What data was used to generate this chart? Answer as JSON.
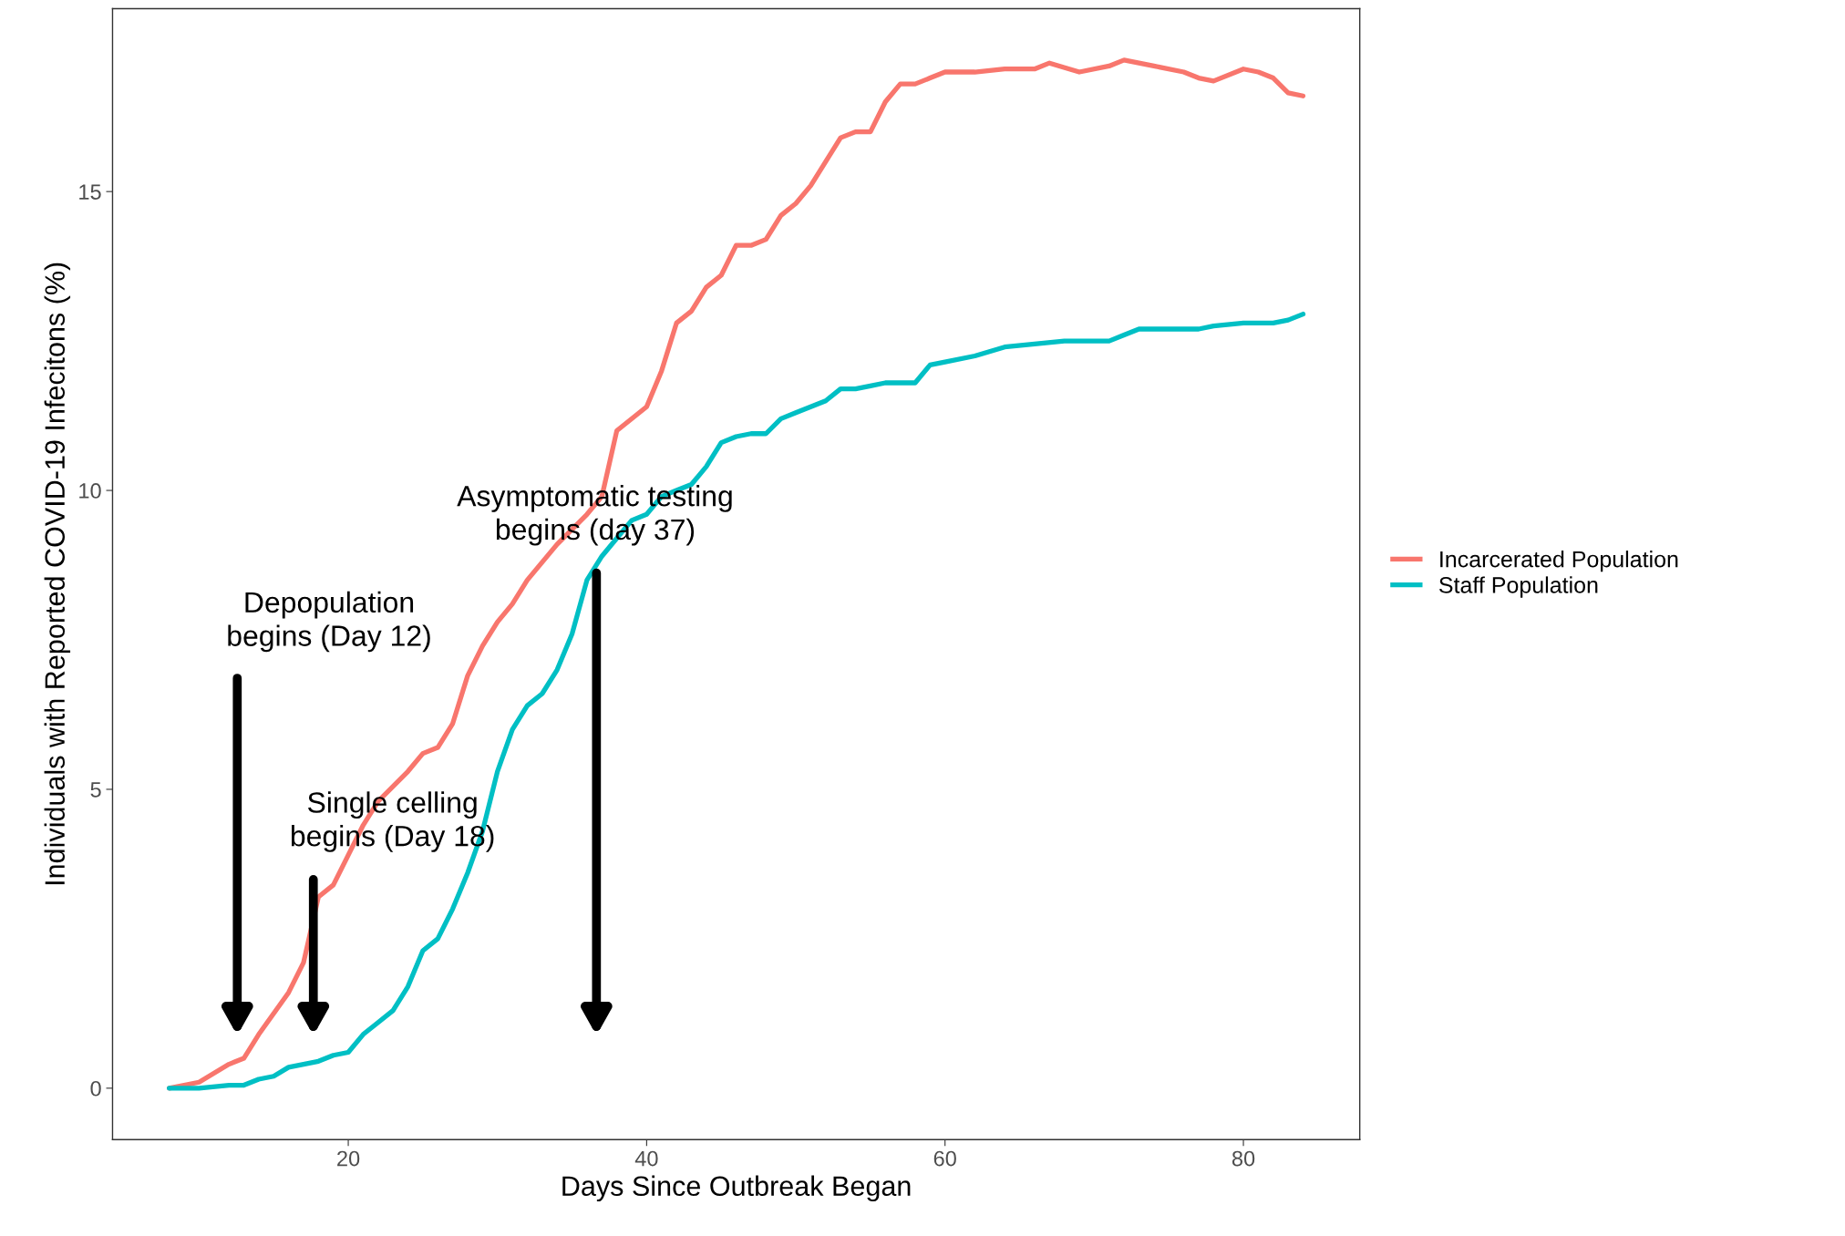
{
  "chart_data": {
    "type": "line",
    "xlabel": "Days Since Outbreak Began",
    "ylabel": "Individuals with Reported COVID-19 Infecitons (%)",
    "xlim": [
      4.2,
      87.8
    ],
    "xticks": [
      20,
      40,
      60,
      80
    ],
    "ylim": [
      -0.86,
      18.06
    ],
    "yticks": [
      0,
      5,
      10,
      15
    ],
    "grid": false,
    "legend": "right",
    "line_style": "solid",
    "marker": "none",
    "series": [
      {
        "name": "Incarcerated Population",
        "color": "#f8766d",
        "x": [
          8,
          10,
          12,
          13,
          14,
          16,
          17,
          18,
          19,
          20,
          21,
          22,
          24,
          25,
          26,
          27,
          28,
          29,
          30,
          31,
          32,
          34,
          36,
          37,
          38,
          40,
          41,
          42,
          43,
          44,
          45,
          46,
          47,
          48,
          49,
          50,
          51,
          52,
          53,
          54,
          55,
          56,
          57,
          58,
          59,
          60,
          62,
          64,
          66,
          67,
          69,
          71,
          72,
          74,
          76,
          77,
          78,
          80,
          81,
          82,
          83,
          84
        ],
        "values": [
          0.0,
          0.1,
          0.4,
          0.5,
          0.9,
          1.6,
          2.1,
          3.2,
          3.4,
          3.9,
          4.4,
          4.8,
          5.3,
          5.6,
          5.7,
          6.1,
          6.9,
          7.4,
          7.8,
          8.1,
          8.5,
          9.1,
          9.6,
          9.9,
          11.0,
          11.4,
          12.0,
          12.8,
          13.0,
          13.4,
          13.6,
          14.1,
          14.1,
          14.2,
          14.6,
          14.8,
          15.1,
          15.5,
          15.9,
          16.0,
          16.0,
          16.5,
          16.8,
          16.8,
          16.9,
          17.0,
          17.0,
          17.05,
          17.05,
          17.15,
          17.0,
          17.1,
          17.2,
          17.1,
          17.0,
          16.9,
          16.85,
          17.05,
          17.0,
          16.9,
          16.65,
          16.6
        ]
      },
      {
        "name": "Staff Population",
        "color": "#00bfc4",
        "x": [
          8,
          10,
          12,
          13,
          14,
          15,
          16,
          17,
          18,
          19,
          20,
          21,
          22,
          23,
          24,
          25,
          26,
          27,
          28,
          29,
          30,
          31,
          32,
          33,
          34,
          35,
          36,
          37,
          38,
          39,
          40,
          41,
          42,
          43,
          44,
          45,
          46,
          47,
          48,
          49,
          50,
          51,
          52,
          53,
          54,
          55,
          56,
          57,
          58,
          59,
          60,
          62,
          64,
          66,
          68,
          70,
          71,
          72,
          73,
          76,
          77,
          78,
          80,
          82,
          83,
          84
        ],
        "values": [
          0.0,
          0.0,
          0.05,
          0.05,
          0.15,
          0.2,
          0.35,
          0.4,
          0.45,
          0.55,
          0.6,
          0.9,
          1.1,
          1.3,
          1.7,
          2.3,
          2.5,
          3.0,
          3.6,
          4.3,
          5.3,
          6.0,
          6.4,
          6.6,
          7.0,
          7.6,
          8.5,
          8.9,
          9.2,
          9.5,
          9.6,
          9.9,
          10.0,
          10.1,
          10.4,
          10.8,
          10.9,
          10.95,
          10.95,
          11.2,
          11.3,
          11.4,
          11.5,
          11.7,
          11.7,
          11.75,
          11.8,
          11.8,
          11.8,
          12.1,
          12.15,
          12.25,
          12.4,
          12.45,
          12.5,
          12.5,
          12.5,
          12.6,
          12.7,
          12.7,
          12.7,
          12.75,
          12.8,
          12.8,
          12.85,
          12.95
        ]
      }
    ],
    "annotations": [
      "Depopulation\nbegins (Day 12)",
      "Single celling\nbegins (Day 18)",
      "Asymptomatic testing\nbegins (day 37)"
    ]
  }
}
